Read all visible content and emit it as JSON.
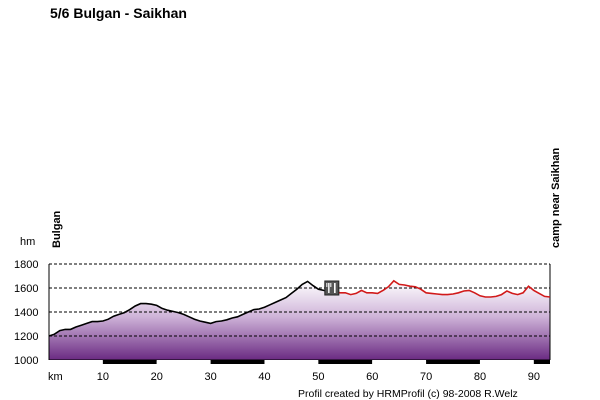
{
  "title": "5/6 Bulgan - Saikhan",
  "footer": "Profil created by HRMProfil (c) 98-2008 R.Welz",
  "chart_data": {
    "type": "area",
    "title": "5/6 Bulgan - Saikhan",
    "xlabel": "km",
    "ylabel": "hm",
    "xlim": [
      0,
      93
    ],
    "ylim": [
      1000,
      1800
    ],
    "x_ticks": [
      10,
      20,
      30,
      40,
      50,
      60,
      70,
      80,
      90
    ],
    "y_ticks": [
      1000,
      1200,
      1400,
      1600,
      1800
    ],
    "grid": "horizontal dashed",
    "start_label": "Bulgan",
    "end_label": "camp near Saikhan",
    "waypoint_icon": "restaurant-icon",
    "waypoint_km": 52.5,
    "colors": {
      "ridden": "#000000",
      "remaining": "#d11a1a",
      "fill_top": "#ffffff",
      "fill_bottom": "#6a2a82"
    },
    "series": [
      {
        "x": [
          0,
          1,
          2,
          3,
          4,
          5,
          6,
          7,
          8,
          9,
          10,
          11,
          12,
          13,
          14,
          15,
          16,
          17,
          18,
          19,
          20,
          21,
          22,
          23,
          24,
          25,
          26,
          27,
          28,
          29,
          30,
          31,
          32,
          33,
          34,
          35,
          36,
          37,
          38,
          39,
          40,
          41,
          42,
          43,
          44,
          45,
          46,
          47,
          48,
          49,
          50,
          51,
          52,
          53
        ],
        "y": [
          1200,
          1215,
          1245,
          1255,
          1255,
          1275,
          1290,
          1305,
          1320,
          1320,
          1325,
          1340,
          1365,
          1380,
          1395,
          1420,
          1450,
          1470,
          1470,
          1465,
          1455,
          1430,
          1415,
          1405,
          1395,
          1380,
          1360,
          1340,
          1325,
          1315,
          1305,
          1320,
          1325,
          1335,
          1350,
          1360,
          1380,
          1400,
          1420,
          1425,
          1440,
          1460,
          1480,
          1500,
          1520,
          1555,
          1590,
          1630,
          1655,
          1620,
          1590,
          1580,
          1570,
          1575
        ]
      },
      {
        "x": [
          53,
          54,
          55,
          56,
          57,
          58,
          59,
          60,
          61,
          62,
          63,
          64,
          65,
          66,
          67,
          68,
          69,
          70,
          71,
          72,
          73,
          74,
          75,
          76,
          77,
          78,
          79,
          80,
          81,
          82,
          83,
          84,
          85,
          86,
          87,
          88,
          89,
          90,
          91,
          92,
          93
        ],
        "y": [
          1575,
          1560,
          1560,
          1545,
          1555,
          1580,
          1560,
          1560,
          1555,
          1580,
          1610,
          1660,
          1630,
          1625,
          1615,
          1610,
          1590,
          1560,
          1555,
          1550,
          1545,
          1545,
          1550,
          1560,
          1575,
          1580,
          1560,
          1535,
          1525,
          1525,
          1530,
          1545,
          1575,
          1555,
          1545,
          1560,
          1615,
          1580,
          1555,
          1530,
          1525
        ]
      }
    ]
  }
}
